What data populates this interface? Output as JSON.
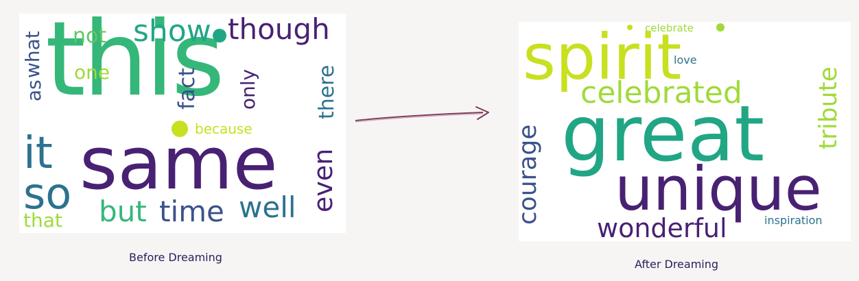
{
  "before": {
    "caption": "Before Dreaming",
    "words": {
      "this": "this",
      "same": "same",
      "show": "show",
      "though": "though",
      "not": "not",
      "what": "what",
      "one": "one",
      "as": "as",
      "fact": "fact",
      "only": "only",
      "there": "there",
      "because": "because",
      "it": "it",
      "so": "so",
      "but": "but",
      "time": "time",
      "well": "well",
      "even": "even",
      "that": "that"
    }
  },
  "after": {
    "caption": "After Dreaming",
    "words": {
      "spirit": "spirit",
      "celebrate": "celebrate",
      "love": "love",
      "celebrated": "celebrated",
      "tribute": "tribute",
      "great": "great",
      "courage": "courage",
      "unique": "unique",
      "wonderful": "wonderful",
      "inspiration": "inspiration"
    }
  },
  "colors": {
    "dark_purple": "#482173",
    "deep_purple": "#440154",
    "teal": "#2c728e",
    "blue_teal": "#3b528b",
    "green": "#21a685",
    "light_green": "#5ec962",
    "yellow_green": "#a0da39",
    "yellow": "#c8e020",
    "arrow": "#7d3a5c"
  }
}
